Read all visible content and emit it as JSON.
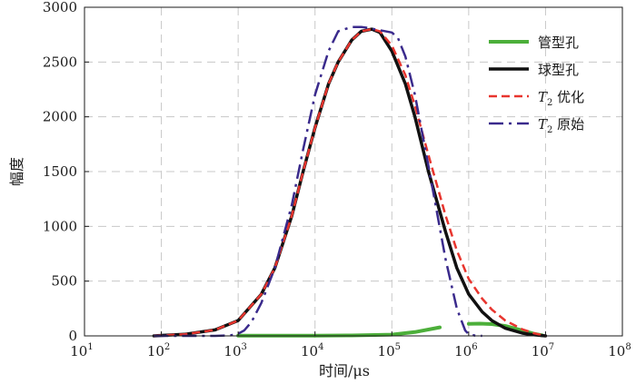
{
  "chart_data": {
    "type": "line",
    "x_scale": "log",
    "xlim": [
      10,
      100000000
    ],
    "ylim": [
      0,
      3000
    ],
    "x_ticks": [
      {
        "base": "10",
        "exp": "1",
        "value": 10
      },
      {
        "base": "10",
        "exp": "2",
        "value": 100
      },
      {
        "base": "10",
        "exp": "3",
        "value": 1000
      },
      {
        "base": "10",
        "exp": "4",
        "value": 10000
      },
      {
        "base": "10",
        "exp": "5",
        "value": 100000
      },
      {
        "base": "10",
        "exp": "6",
        "value": 1000000
      },
      {
        "base": "10",
        "exp": "7",
        "value": 10000000
      },
      {
        "base": "10",
        "exp": "8",
        "value": 100000000
      }
    ],
    "y_ticks": [
      "0",
      "500",
      "1000",
      "1500",
      "2000",
      "2500",
      "3000"
    ],
    "xlabel": "时间/μs",
    "ylabel": "幅度",
    "grid": true,
    "legend_position": "top-right",
    "series": [
      {
        "name": "管型孔",
        "legend_main": "管型孔",
        "legend_sub": "",
        "color": "#4caf3a",
        "style": "solid",
        "width": 4,
        "segments": [
          {
            "x": [
              1000,
              10000
            ],
            "y": [
              2,
              2
            ]
          },
          {
            "x": [
              10000,
              30000,
              100000,
              200000,
              420000
            ],
            "y": [
              2,
              4,
              12,
              35,
              78
            ]
          },
          {
            "x": [
              1000000,
              1400000,
              2000000,
              3000000,
              5000000,
              7000000,
              9000000
            ],
            "y": [
              110,
              112,
              108,
              90,
              50,
              20,
              5
            ]
          }
        ]
      },
      {
        "name": "球型孔",
        "legend_main": "球型孔",
        "legend_sub": "",
        "color": "#111111",
        "style": "solid",
        "width": 3.5,
        "segments": [
          {
            "x": [
              80,
              100,
              200,
              500,
              1000,
              2000,
              3000,
              5000,
              7000,
              10000,
              15000,
              20000,
              30000,
              40000,
              55000,
              70000,
              100000,
              150000,
              200000,
              300000,
              500000,
              700000,
              1000000,
              1500000,
              2000000,
              3000000,
              5000000,
              7000000,
              10000000
            ],
            "y": [
              0,
              4,
              14,
              55,
              140,
              380,
              620,
              1100,
              1500,
              1900,
              2300,
              2500,
              2700,
              2780,
              2800,
              2770,
              2600,
              2300,
              2000,
              1500,
              950,
              620,
              380,
              220,
              140,
              70,
              25,
              10,
              0
            ]
          }
        ]
      },
      {
        "name": "T₂ 优化",
        "legend_main": "T",
        "legend_sub": "2",
        "legend_rest": " 优化",
        "color": "#e8352e",
        "style": "dash",
        "width": 2.5,
        "segments": [
          {
            "x": [
              80,
              100,
              200,
              500,
              1000,
              2000,
              3000,
              5000,
              7000,
              10000,
              15000,
              20000,
              30000,
              40000,
              55000,
              70000,
              100000,
              150000,
              200000,
              300000,
              500000,
              700000,
              1000000,
              1500000,
              2000000,
              3000000,
              5000000,
              7000000,
              10000000
            ],
            "y": [
              0,
              4,
              14,
              55,
              140,
              380,
              620,
              1100,
              1500,
              1900,
              2300,
              2500,
              2700,
              2780,
              2800,
              2780,
              2650,
              2380,
              2100,
              1650,
              1100,
              780,
              520,
              340,
              240,
              140,
              60,
              25,
              0
            ]
          }
        ]
      },
      {
        "name": "T₂ 原始",
        "legend_main": "T",
        "legend_sub": "2",
        "legend_rest": " 原始",
        "color": "#3a2a8c",
        "style": "dashdot",
        "width": 2.5,
        "segments": [
          {
            "x": [
              80,
              200,
              500,
              800,
              1000,
              1200,
              1500,
              2000,
              3000,
              5000,
              7000,
              10000,
              15000,
              20000,
              30000,
              40000,
              50000,
              70000,
              100000,
              120000,
              150000,
              200000,
              300000,
              500000,
              700000,
              900000,
              1000000,
              1200000,
              1500000
            ],
            "y": [
              0,
              0,
              0,
              5,
              20,
              50,
              130,
              300,
              620,
              1200,
              1700,
              2200,
              2600,
              2780,
              2820,
              2820,
              2810,
              2790,
              2770,
              2720,
              2550,
              2200,
              1550,
              700,
              250,
              50,
              15,
              3,
              0
            ]
          }
        ]
      }
    ]
  }
}
